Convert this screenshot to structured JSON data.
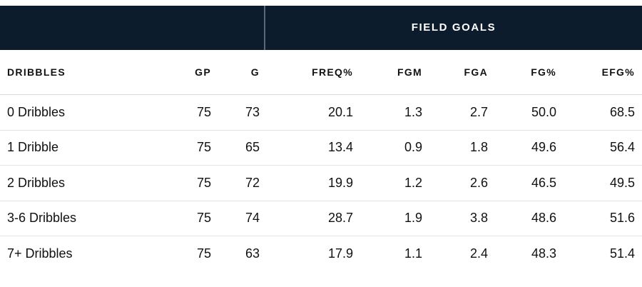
{
  "group_header": "FIELD GOALS",
  "columns": {
    "dribbles": "DRIBBLES",
    "gp": "GP",
    "g": "G",
    "freq": "FREQ%",
    "fgm": "FGM",
    "fga": "FGA",
    "fg_pct": "FG%",
    "efg_pct": "EFG%"
  },
  "rows": [
    {
      "dribbles": "0 Dribbles",
      "gp": "75",
      "g": "73",
      "freq": "20.1",
      "fgm": "1.3",
      "fga": "2.7",
      "fg_pct": "50.0",
      "efg_pct": "68.5"
    },
    {
      "dribbles": "1 Dribble",
      "gp": "75",
      "g": "65",
      "freq": "13.4",
      "fgm": "0.9",
      "fga": "1.8",
      "fg_pct": "49.6",
      "efg_pct": "56.4"
    },
    {
      "dribbles": "2 Dribbles",
      "gp": "75",
      "g": "72",
      "freq": "19.9",
      "fgm": "1.2",
      "fga": "2.6",
      "fg_pct": "46.5",
      "efg_pct": "49.5"
    },
    {
      "dribbles": "3-6 Dribbles",
      "gp": "75",
      "g": "74",
      "freq": "28.7",
      "fgm": "1.9",
      "fga": "3.8",
      "fg_pct": "48.6",
      "efg_pct": "51.6"
    },
    {
      "dribbles": "7+ Dribbles",
      "gp": "75",
      "g": "63",
      "freq": "17.9",
      "fgm": "1.1",
      "fga": "2.4",
      "fg_pct": "48.3",
      "efg_pct": "51.4"
    }
  ],
  "colors": {
    "header_band": "#0c1c2c",
    "header_text": "#ffffff",
    "body_text": "#111111",
    "row_divider": "#e3e3e3"
  }
}
